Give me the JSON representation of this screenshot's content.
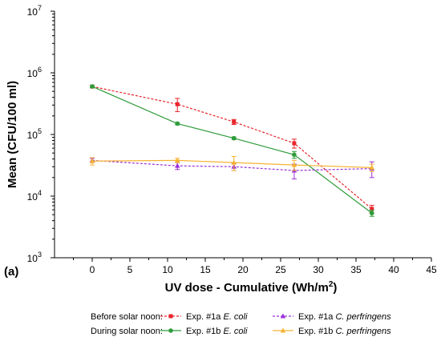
{
  "chart_data": {
    "type": "line",
    "panel_label": "(a)",
    "xlabel": "UV dose - Cumulative (Wh/m²)",
    "xlabel_main": "UV dose - Cumulative (Wh/m",
    "xlabel_sup": "2",
    "xlabel_end": ")",
    "ylabel": "Mean (CFU/100 ml)",
    "xlim": [
      -5,
      45
    ],
    "ylim": [
      1000,
      10000000
    ],
    "yscale": "log",
    "x_ticks": [
      "0",
      "5",
      "10",
      "15",
      "20",
      "25",
      "30",
      "35",
      "40",
      "45"
    ],
    "x_tick_values": [
      0,
      5,
      10,
      15,
      20,
      25,
      30,
      35,
      40,
      45
    ],
    "y_ticks": [
      {
        "value": 1000,
        "base": "10",
        "exp": "3"
      },
      {
        "value": 10000,
        "base": "10",
        "exp": "4"
      },
      {
        "value": 100000,
        "base": "10",
        "exp": "5"
      },
      {
        "value": 1000000,
        "base": "10",
        "exp": "6"
      },
      {
        "value": 10000000,
        "base": "10",
        "exp": "7"
      }
    ],
    "legend": {
      "placement": "bottom",
      "groups": [
        {
          "label": "Before solar noon:",
          "entries": [
            0,
            2
          ]
        },
        {
          "label": "During solar noon:",
          "entries": [
            1,
            3
          ]
        }
      ]
    },
    "series": [
      {
        "name_prefix": "Exp. #1a ",
        "name_italic": "E. coli",
        "color": "#e8242b",
        "dashed": true,
        "marker": "square",
        "x": [
          0,
          11.3,
          18.8,
          26.8,
          37.1
        ],
        "y": [
          600000,
          310000,
          160000,
          72000,
          6200
        ],
        "err": [
          20000,
          75000,
          15000,
          12000,
          900
        ]
      },
      {
        "name_prefix": "Exp. #1b ",
        "name_italic": "E. coli",
        "color": "#2e9c3a",
        "dashed": false,
        "marker": "circle",
        "x": [
          0,
          11.3,
          18.8,
          26.8,
          37.1
        ],
        "y": [
          600000,
          150000,
          87000,
          47000,
          5300
        ],
        "err": [
          20000,
          7000,
          4000,
          6000,
          600
        ]
      },
      {
        "name_prefix": "Exp. #1a ",
        "name_italic": "C. perfringens",
        "color": "#9b30d9",
        "dashed": true,
        "marker": "triangle",
        "x": [
          0,
          11.3,
          18.8,
          26.8,
          37.1
        ],
        "y": [
          38000,
          31000,
          30000,
          26000,
          28000
        ],
        "err": [
          3000,
          4000,
          4000,
          7000,
          8000
        ]
      },
      {
        "name_prefix": "Exp. #1b ",
        "name_italic": "C. perfringens",
        "color": "#f5b331",
        "dashed": false,
        "marker": "triangle",
        "x": [
          0,
          11.3,
          18.8,
          26.8,
          37.1
        ],
        "y": [
          37000,
          38000,
          35000,
          32000,
          29000
        ],
        "err": [
          5000,
          3000,
          9000,
          6000,
          4000
        ]
      }
    ]
  }
}
